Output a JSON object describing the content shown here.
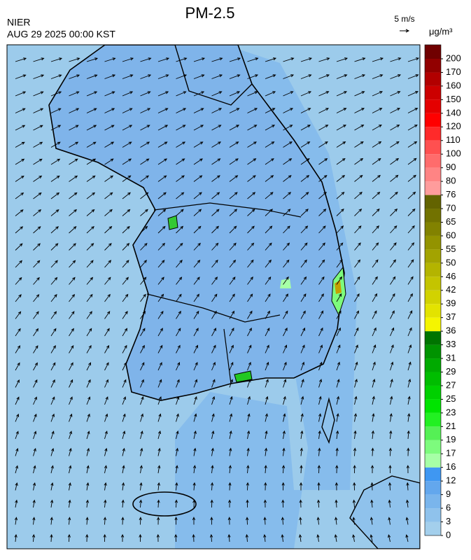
{
  "header": {
    "title": "PM-2.5",
    "source": "NIER",
    "timestamp": "AUG 29 2025 00:00 KST",
    "wind_scale": "5 m/s",
    "unit": "μg/m³"
  },
  "colorbar": {
    "levels": [
      0,
      3,
      6,
      9,
      12,
      16,
      17,
      19,
      21,
      23,
      25,
      27,
      29,
      31,
      33,
      36,
      37,
      39,
      42,
      46,
      50,
      55,
      60,
      65,
      70,
      76,
      80,
      90,
      100,
      110,
      120,
      140,
      150,
      160,
      170,
      200
    ],
    "colors": [
      "#a3cfec",
      "#8fc2ec",
      "#7ab5ec",
      "#63a7ed",
      "#3f97f2",
      "#a6ffa6",
      "#7dfb7d",
      "#55f055",
      "#22f022",
      "#00e400",
      "#00d000",
      "#00bd00",
      "#00aa00",
      "#009300",
      "#007400",
      "#f5f500",
      "#e3e300",
      "#d2d200",
      "#c4c400",
      "#b4b400",
      "#a3a300",
      "#939300",
      "#828200",
      "#727200",
      "#636300",
      "#ff9c9c",
      "#ff8484",
      "#ff6c6c",
      "#ff5050",
      "#ff2a2a",
      "#ff0000",
      "#e40000",
      "#cc0000",
      "#b20000",
      "#920000",
      "#700000"
    ]
  }
}
